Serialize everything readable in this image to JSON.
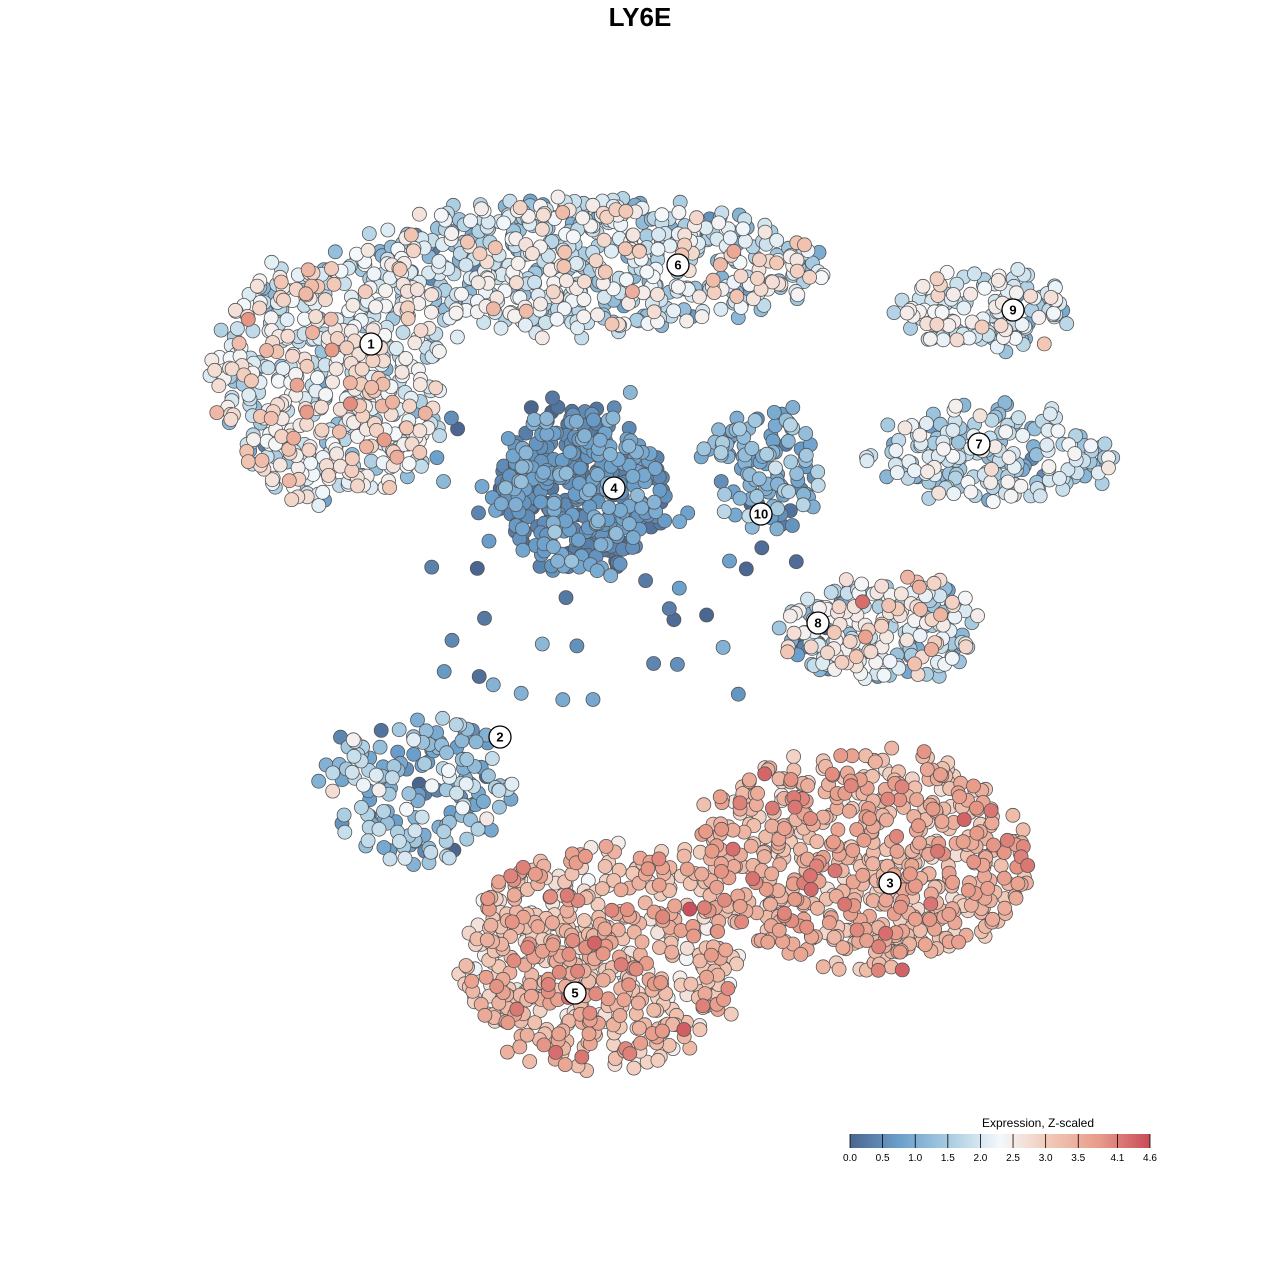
{
  "title": "LY6E",
  "chart_data": {
    "type": "scatter",
    "title": "LY6E",
    "xlabel": "",
    "ylabel": "",
    "grid": false,
    "axes_visible": false,
    "legend_position": "bottom-right",
    "colorbar": {
      "title": "Expression, Z-scaled",
      "ticks": [
        "0.0",
        "0.5",
        "1.0",
        "1.5",
        "2.0",
        "2.5",
        "3.0",
        "3.5",
        "4.1",
        "4.6"
      ],
      "tick_values": [
        0.0,
        0.5,
        1.0,
        1.5,
        2.0,
        2.5,
        3.0,
        3.5,
        4.1,
        4.6
      ],
      "colors": [
        "#4a6690",
        "#6ba0cc",
        "#a9cde2",
        "#f4f8fb",
        "#f2c8b6",
        "#e89a88",
        "#c84b58"
      ]
    },
    "clusters": [
      {
        "label": "1",
        "mean_expression": 2.2,
        "spread": 1.2
      },
      {
        "label": "2",
        "mean_expression": 1.3,
        "spread": 1.1
      },
      {
        "label": "3",
        "mean_expression": 3.4,
        "spread": 0.7
      },
      {
        "label": "4",
        "mean_expression": 0.6,
        "spread": 0.6
      },
      {
        "label": "5",
        "mean_expression": 3.2,
        "spread": 0.9
      },
      {
        "label": "6",
        "mean_expression": 1.9,
        "spread": 1.1
      },
      {
        "label": "7",
        "mean_expression": 1.7,
        "spread": 1.0
      },
      {
        "label": "8",
        "mean_expression": 2.0,
        "spread": 1.4
      },
      {
        "label": "9",
        "mean_expression": 2.0,
        "spread": 0.9
      },
      {
        "label": "10",
        "mean_expression": 1.0,
        "spread": 0.8
      }
    ]
  }
}
